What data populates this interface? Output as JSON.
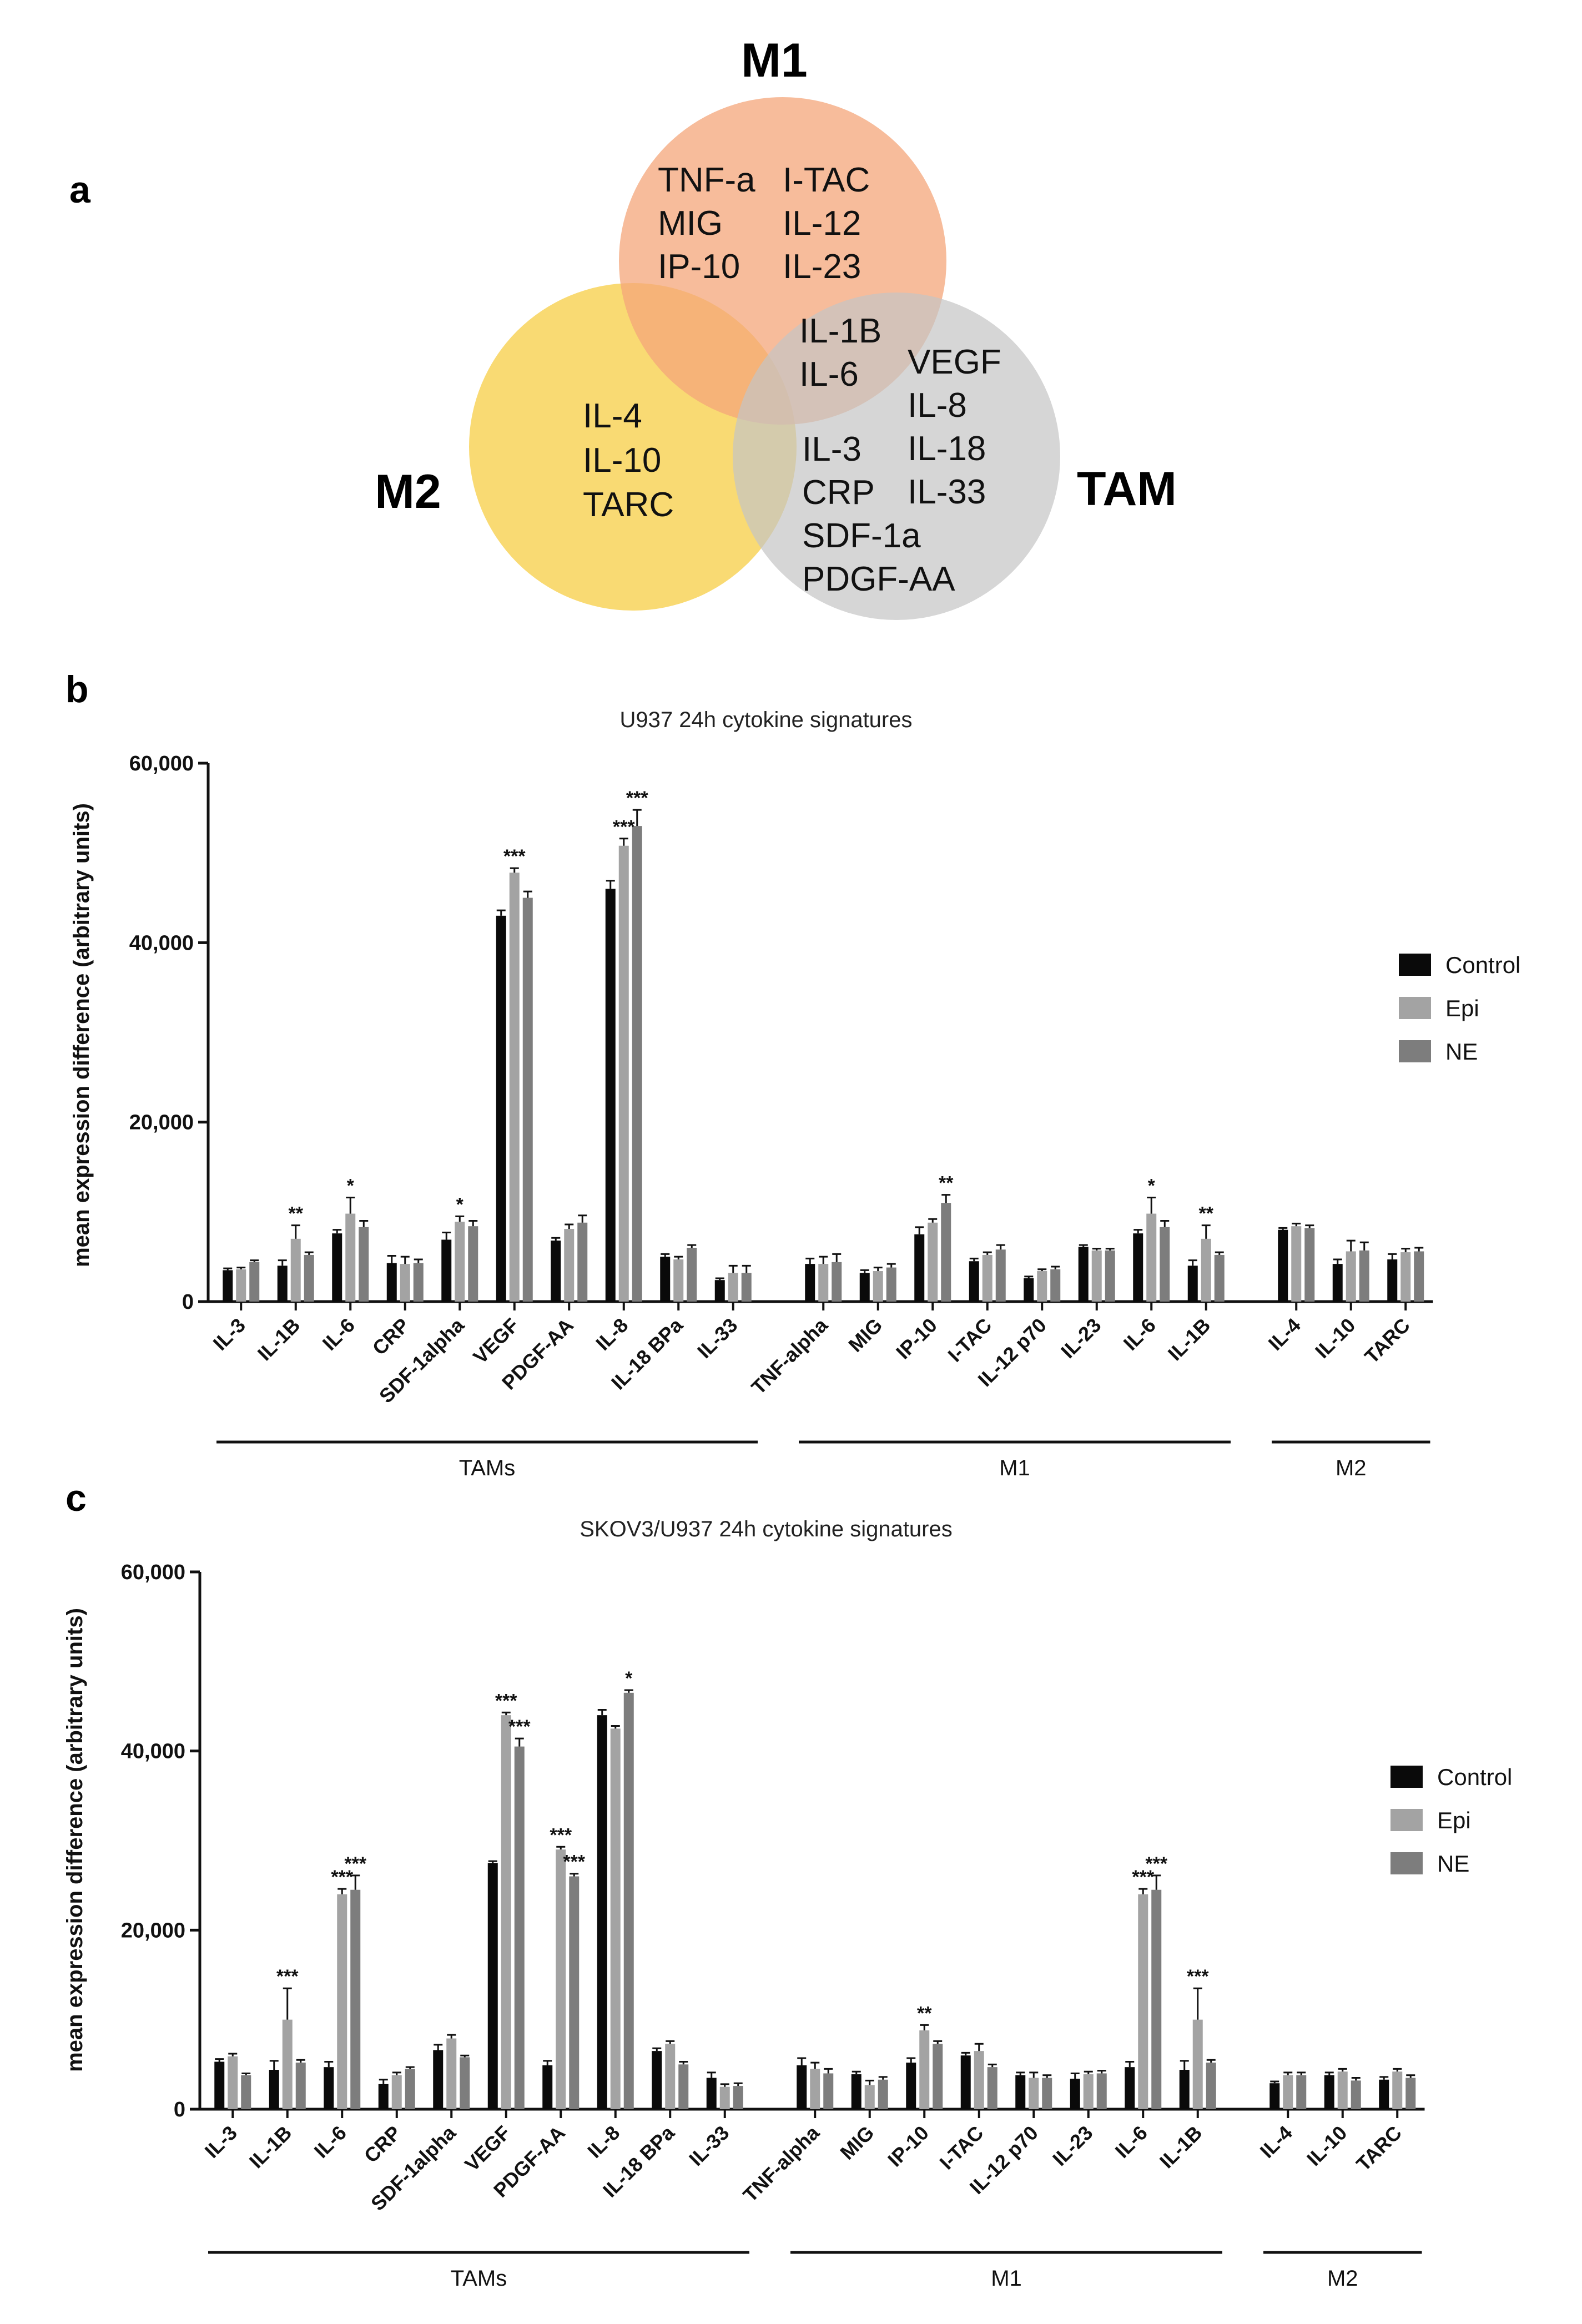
{
  "venn": {
    "panel_label": "a",
    "circles": {
      "m1": {
        "label": "M1",
        "color": "#f4a67a"
      },
      "m2": {
        "label": "M2",
        "color": "#f8d45a"
      },
      "tam": {
        "label": "TAM",
        "color": "#c4c4c4"
      }
    },
    "m1_only_col1": [
      "TNF-a",
      "MIG",
      "IP-10"
    ],
    "m1_only_col2": [
      "I-TAC",
      "IL-12",
      "IL-23"
    ],
    "m1_tam": [
      "IL-1B",
      "IL-6"
    ],
    "m2_only": [
      "IL-4",
      "IL-10",
      "TARC"
    ],
    "tam_only_col1": [
      "IL-3",
      "CRP",
      "SDF-1a",
      "PDGF-AA"
    ],
    "tam_only_col2": [
      "VEGF",
      "IL-8",
      "IL-18",
      "IL-33"
    ]
  },
  "legend": {
    "items": [
      "Control",
      "Epi",
      "NE"
    ],
    "colors": [
      "#0a0a0a",
      "#a3a3a3",
      "#7d7d7d"
    ]
  },
  "chart_data": [
    {
      "panel_label": "b",
      "type": "bar",
      "title": "U937 24h cytokine signatures",
      "ylabel": "mean expression difference (arbitrary units)",
      "ylim": [
        0,
        60000
      ],
      "yticks": [
        "0",
        "20,000",
        "40,000",
        "60,000"
      ],
      "categories": [
        "IL-3",
        "IL-1B",
        "IL-6",
        "CRP",
        "SDF-1alpha",
        "VEGF",
        "PDGF-AA",
        "IL-8",
        "IL-18 BPa",
        "IL-33",
        "TNF-alpha",
        "MIG",
        "IP-10",
        "I-TAC",
        "IL-12 p70",
        "IL-23",
        "IL-6",
        "IL-1B",
        "IL-4",
        "IL-10",
        "TARC"
      ],
      "groups": [
        {
          "name": "TAMs",
          "range": [
            0,
            9
          ]
        },
        {
          "name": "M1",
          "range": [
            10,
            17
          ]
        },
        {
          "name": "M2",
          "range": [
            18,
            20
          ]
        }
      ],
      "series": [
        {
          "name": "Control",
          "values": [
            3500,
            4000,
            7600,
            4300,
            6900,
            43000,
            6800,
            46000,
            5000,
            2400,
            4200,
            3200,
            7500,
            4500,
            2600,
            6100,
            7600,
            4000,
            8000,
            4200,
            4700
          ]
        },
        {
          "name": "Epi",
          "values": [
            3600,
            7000,
            9800,
            4200,
            8900,
            47800,
            8100,
            50800,
            4700,
            3200,
            4200,
            3400,
            8800,
            5200,
            3400,
            5700,
            9800,
            7000,
            8400,
            5600,
            5500
          ]
        },
        {
          "name": "NE",
          "values": [
            4400,
            5200,
            8300,
            4300,
            8400,
            45000,
            8800,
            53000,
            6000,
            3200,
            4400,
            3800,
            11000,
            5800,
            3600,
            5700,
            8300,
            5200,
            8200,
            5700,
            5600
          ]
        }
      ],
      "errors": [
        [
          200,
          600,
          400,
          800,
          800,
          600,
          300,
          900,
          300,
          200,
          600,
          300,
          800,
          300,
          200,
          200,
          400,
          600,
          200,
          500,
          600
        ],
        [
          200,
          1500,
          1800,
          800,
          600,
          500,
          500,
          800,
          300,
          800,
          800,
          400,
          400,
          300,
          200,
          200,
          1800,
          1500,
          300,
          1200,
          400
        ],
        [
          200,
          300,
          700,
          400,
          600,
          700,
          800,
          1800,
          300,
          800,
          900,
          400,
          900,
          500,
          300,
          200,
          700,
          300,
          300,
          900,
          400
        ]
      ],
      "significance": [
        {
          "index": 1,
          "series": 1,
          "label": "**"
        },
        {
          "index": 2,
          "series": 1,
          "label": "*"
        },
        {
          "index": 4,
          "series": 1,
          "label": "*"
        },
        {
          "index": 5,
          "series": 1,
          "label": "***"
        },
        {
          "index": 7,
          "series": 1,
          "label": "***"
        },
        {
          "index": 7,
          "series": 2,
          "label": "***"
        },
        {
          "index": 12,
          "series": 2,
          "label": "**"
        },
        {
          "index": 16,
          "series": 1,
          "label": "*"
        },
        {
          "index": 17,
          "series": 1,
          "label": "**"
        }
      ]
    },
    {
      "panel_label": "c",
      "type": "bar",
      "title": "SKOV3/U937 24h cytokine signatures",
      "ylabel": "mean expression difference (arbitrary units)",
      "ylim": [
        0,
        60000
      ],
      "yticks": [
        "0",
        "20,000",
        "40,000",
        "60,000"
      ],
      "categories": [
        "IL-3",
        "IL-1B",
        "IL-6",
        "CRP",
        "SDF-1alpha",
        "VEGF",
        "PDGF-AA",
        "IL-8",
        "IL-18 BPa",
        "IL-33",
        "TNF-alpha",
        "MIG",
        "IP-10",
        "I-TAC",
        "IL-12 p70",
        "IL-23",
        "IL-6",
        "IL-1B",
        "IL-4",
        "IL-10",
        "TARC"
      ],
      "groups": [
        {
          "name": "TAMs",
          "range": [
            0,
            9
          ]
        },
        {
          "name": "M1",
          "range": [
            10,
            17
          ]
        },
        {
          "name": "M2",
          "range": [
            18,
            20
          ]
        }
      ],
      "series": [
        {
          "name": "Control",
          "values": [
            5300,
            4400,
            4700,
            2800,
            6600,
            27500,
            4900,
            44000,
            6500,
            3500,
            4900,
            3900,
            5200,
            6000,
            3800,
            3400,
            4700,
            4400,
            2900,
            3800,
            3300
          ]
        },
        {
          "name": "Epi",
          "values": [
            5900,
            10000,
            24000,
            3800,
            7900,
            44000,
            29000,
            42500,
            7300,
            2500,
            4500,
            2700,
            8800,
            6500,
            3500,
            3900,
            24000,
            10000,
            3800,
            4200,
            4200
          ]
        },
        {
          "name": "NE",
          "values": [
            3800,
            5200,
            24500,
            4500,
            5800,
            40500,
            26000,
            46500,
            5000,
            2600,
            4000,
            3300,
            7300,
            4700,
            3500,
            4000,
            24500,
            5200,
            3800,
            3200,
            3500
          ]
        }
      ],
      "errors": [
        [
          300,
          1000,
          600,
          500,
          600,
          200,
          500,
          600,
          300,
          600,
          800,
          300,
          500,
          300,
          300,
          600,
          600,
          1000,
          200,
          300,
          300
        ],
        [
          300,
          3500,
          600,
          300,
          400,
          300,
          300,
          300,
          300,
          300,
          700,
          500,
          600,
          800,
          600,
          300,
          600,
          3500,
          300,
          300,
          300
        ],
        [
          200,
          300,
          1600,
          200,
          200,
          900,
          300,
          300,
          300,
          300,
          500,
          300,
          300,
          300,
          300,
          300,
          1600,
          300,
          300,
          300,
          300
        ]
      ],
      "significance": [
        {
          "index": 1,
          "series": 1,
          "label": "***"
        },
        {
          "index": 2,
          "series": 1,
          "label": "***"
        },
        {
          "index": 2,
          "series": 2,
          "label": "***"
        },
        {
          "index": 5,
          "series": 1,
          "label": "***"
        },
        {
          "index": 5,
          "series": 2,
          "label": "***"
        },
        {
          "index": 6,
          "series": 1,
          "label": "***"
        },
        {
          "index": 6,
          "series": 2,
          "label": "***"
        },
        {
          "index": 7,
          "series": 2,
          "label": "*"
        },
        {
          "index": 12,
          "series": 1,
          "label": "**"
        },
        {
          "index": 16,
          "series": 1,
          "label": "***"
        },
        {
          "index": 16,
          "series": 2,
          "label": "***"
        },
        {
          "index": 17,
          "series": 1,
          "label": "***"
        }
      ]
    }
  ]
}
